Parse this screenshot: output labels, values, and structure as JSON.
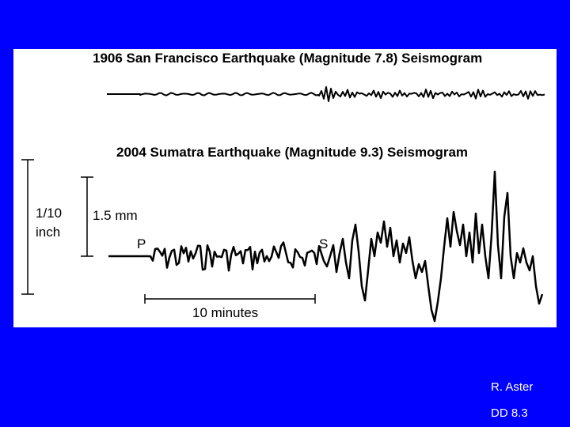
{
  "slide": {
    "title_sf": "1906 San Francisco Earthquake (Magnitude  7.8) Seismogram",
    "title_sumatra": "2004 Sumatra Earthquake (Magnitude  9.3) Seismogram",
    "scale_left_line1": "1/10",
    "scale_left_line2": "inch",
    "scale_right": "1.5 mm",
    "p_label": "P",
    "s_label": "S",
    "time_scale": "10 minutes",
    "credit": "R. Aster",
    "slide_id": "DD 8.3"
  },
  "colors": {
    "background": "#0000ff",
    "panel": "#ffffff",
    "ink": "#000000",
    "footer_text": "#ffffff"
  }
}
